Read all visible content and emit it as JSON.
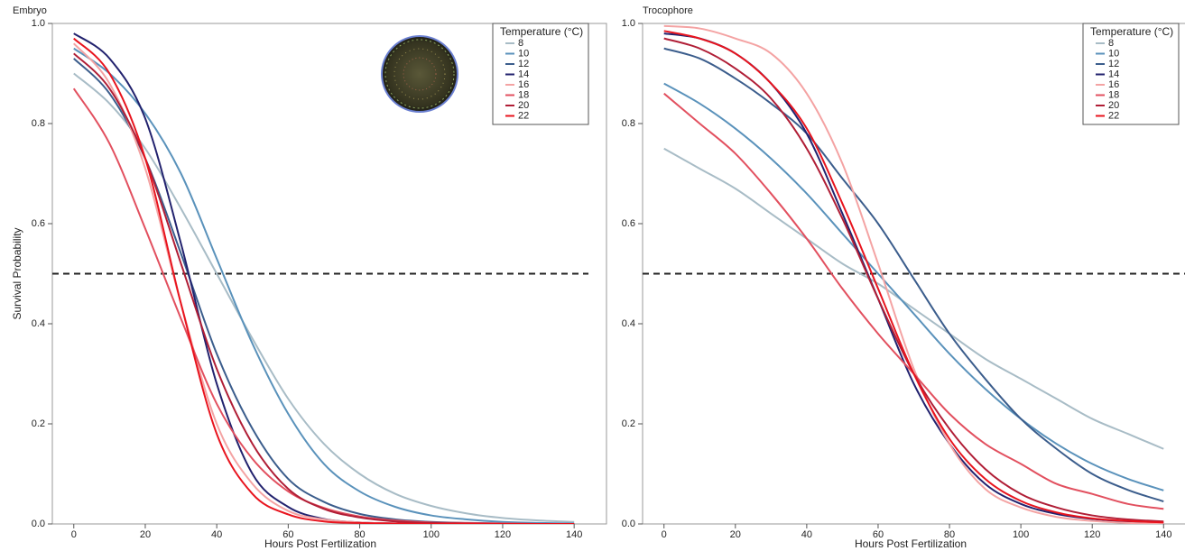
{
  "chart_data": [
    {
      "type": "line",
      "title": "Embryo",
      "x_label": "Hours Post Fertilization",
      "y_label": "Survival Probability",
      "x": [
        0,
        10,
        20,
        30,
        40,
        50,
        60,
        70,
        80,
        90,
        100,
        110,
        120,
        130,
        140
      ],
      "xlim": [
        -6,
        144
      ],
      "ylim": [
        0,
        1
      ],
      "xticks": [
        0,
        20,
        40,
        60,
        80,
        100,
        120,
        140
      ],
      "yticks": [
        {
          "value": 0,
          "label": "0.0"
        },
        0.2,
        0.4,
        0.6,
        0.8,
        {
          "value": 1,
          "label": "1.0"
        }
      ],
      "reference_line": 0.5,
      "legend_title": "Temperature (°C)",
      "legend": "upper right",
      "series": [
        {
          "name": "8",
          "color": "#a8bcc6",
          "values": [
            0.9,
            0.84,
            0.75,
            0.63,
            0.5,
            0.37,
            0.25,
            0.16,
            0.1,
            0.06,
            0.036,
            0.021,
            0.012,
            0.007,
            0.004
          ]
        },
        {
          "name": "10",
          "color": "#5a92bb",
          "values": [
            0.95,
            0.9,
            0.82,
            0.7,
            0.53,
            0.36,
            0.22,
            0.12,
            0.065,
            0.034,
            0.017,
            0.009,
            0.004,
            0.002,
            0.001
          ]
        },
        {
          "name": "12",
          "color": "#3b5d8c",
          "values": [
            0.93,
            0.86,
            0.73,
            0.54,
            0.34,
            0.19,
            0.09,
            0.044,
            0.02,
            0.009,
            0.004,
            0.002,
            0.001,
            0,
            0
          ]
        },
        {
          "name": "14",
          "color": "#22226e",
          "values": [
            0.98,
            0.93,
            0.81,
            0.56,
            0.28,
            0.1,
            0.034,
            0.01,
            0.003,
            0.001,
            0,
            0,
            0,
            0,
            0
          ]
        },
        {
          "name": "16",
          "color": "#f4a3a3",
          "values": [
            0.96,
            0.88,
            0.71,
            0.44,
            0.2,
            0.08,
            0.026,
            0.009,
            0.003,
            0.001,
            0,
            0,
            0,
            0,
            0
          ]
        },
        {
          "name": "18",
          "color": "#e2505f",
          "values": [
            0.87,
            0.76,
            0.59,
            0.41,
            0.24,
            0.13,
            0.065,
            0.032,
            0.015,
            0.007,
            0.003,
            0.002,
            0.001,
            0,
            0
          ]
        },
        {
          "name": "20",
          "color": "#b01e36",
          "values": [
            0.94,
            0.87,
            0.73,
            0.52,
            0.31,
            0.16,
            0.07,
            0.03,
            0.013,
            0.005,
            0.002,
            0.001,
            0,
            0,
            0
          ]
        },
        {
          "name": "22",
          "color": "#e8141e",
          "values": [
            0.97,
            0.9,
            0.73,
            0.44,
            0.18,
            0.06,
            0.019,
            0.005,
            0.002,
            0.001,
            0,
            0,
            0,
            0,
            0
          ]
        }
      ]
    },
    {
      "type": "line",
      "title": "Trocophore",
      "x_label": "Hours Post Fertilization",
      "x": [
        0,
        10,
        20,
        30,
        40,
        50,
        60,
        70,
        80,
        90,
        100,
        110,
        120,
        130,
        140
      ],
      "xlim": [
        -6,
        146
      ],
      "ylim": [
        0,
        1
      ],
      "xticks": [
        0,
        20,
        40,
        60,
        80,
        100,
        120,
        140
      ],
      "yticks": [
        {
          "value": 0,
          "label": "0.0"
        },
        0.2,
        0.4,
        0.6,
        0.8,
        {
          "value": 1,
          "label": "1.0"
        }
      ],
      "reference_line": 0.5,
      "legend_title": "Temperature (°C)",
      "legend": "upper right",
      "series": [
        {
          "name": "8",
          "color": "#a8bcc6",
          "values": [
            0.75,
            0.71,
            0.67,
            0.62,
            0.57,
            0.52,
            0.48,
            0.43,
            0.38,
            0.33,
            0.29,
            0.25,
            0.21,
            0.18,
            0.15
          ]
        },
        {
          "name": "10",
          "color": "#5a92bb",
          "values": [
            0.88,
            0.84,
            0.79,
            0.73,
            0.66,
            0.58,
            0.5,
            0.42,
            0.34,
            0.27,
            0.21,
            0.16,
            0.12,
            0.09,
            0.067
          ]
        },
        {
          "name": "12",
          "color": "#3b5d8c",
          "values": [
            0.95,
            0.93,
            0.89,
            0.84,
            0.78,
            0.69,
            0.6,
            0.49,
            0.38,
            0.29,
            0.21,
            0.15,
            0.1,
            0.068,
            0.045
          ]
        },
        {
          "name": "14",
          "color": "#22226e",
          "values": [
            0.98,
            0.97,
            0.94,
            0.88,
            0.78,
            0.62,
            0.45,
            0.28,
            0.16,
            0.08,
            0.04,
            0.02,
            0.01,
            0.005,
            0.002
          ]
        },
        {
          "name": "16",
          "color": "#f4a3a3",
          "values": [
            0.995,
            0.99,
            0.97,
            0.94,
            0.86,
            0.72,
            0.52,
            0.31,
            0.16,
            0.07,
            0.033,
            0.014,
            0.006,
            0.002,
            0.001
          ]
        },
        {
          "name": "18",
          "color": "#e2505f",
          "values": [
            0.86,
            0.8,
            0.74,
            0.66,
            0.57,
            0.47,
            0.38,
            0.3,
            0.22,
            0.16,
            0.12,
            0.08,
            0.06,
            0.04,
            0.03
          ]
        },
        {
          "name": "20",
          "color": "#b01e36",
          "values": [
            0.97,
            0.95,
            0.91,
            0.85,
            0.75,
            0.61,
            0.45,
            0.3,
            0.19,
            0.11,
            0.06,
            0.033,
            0.017,
            0.009,
            0.005
          ]
        },
        {
          "name": "22",
          "color": "#e8141e",
          "values": [
            0.985,
            0.97,
            0.94,
            0.88,
            0.79,
            0.64,
            0.47,
            0.3,
            0.17,
            0.09,
            0.046,
            0.023,
            0.011,
            0.006,
            0.003
          ]
        }
      ]
    }
  ]
}
